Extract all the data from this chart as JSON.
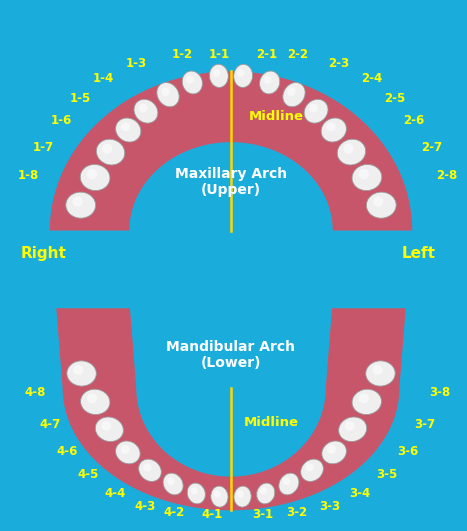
{
  "background_color": "#1AADDC",
  "arch_color": "#C8566B",
  "arch_shadow": "#A84050",
  "tooth_color": "#EFEFEF",
  "tooth_highlight": "#FFFFFF",
  "tooth_outline": "#AAAAAA",
  "label_color": "#FFFF00",
  "midline_color": "#FFD700",
  "text_color": "#FFFFFF",
  "upper_arch_label": "Maxillary Arch\n(Upper)",
  "lower_arch_label": "Mandibular Arch\n(Lower)",
  "midline_label": "Midline",
  "right_label": "Right",
  "left_label": "Left",
  "upper_q1_labels": [
    "1-1",
    "1-2",
    "1-3",
    "1-4",
    "1-5",
    "1-6",
    "1-7",
    "1-8"
  ],
  "upper_q2_labels": [
    "2-1",
    "2-2",
    "2-3",
    "2-4",
    "2-5",
    "2-6",
    "2-7",
    "2-8"
  ],
  "lower_q4_labels": [
    "4-1",
    "4-2",
    "4-3",
    "4-4",
    "4-5",
    "4-6",
    "4-7",
    "4-8"
  ],
  "lower_q3_labels": [
    "3-1",
    "3-2",
    "3-3",
    "3-4",
    "3-5",
    "3-6",
    "3-7",
    "3-8"
  ]
}
